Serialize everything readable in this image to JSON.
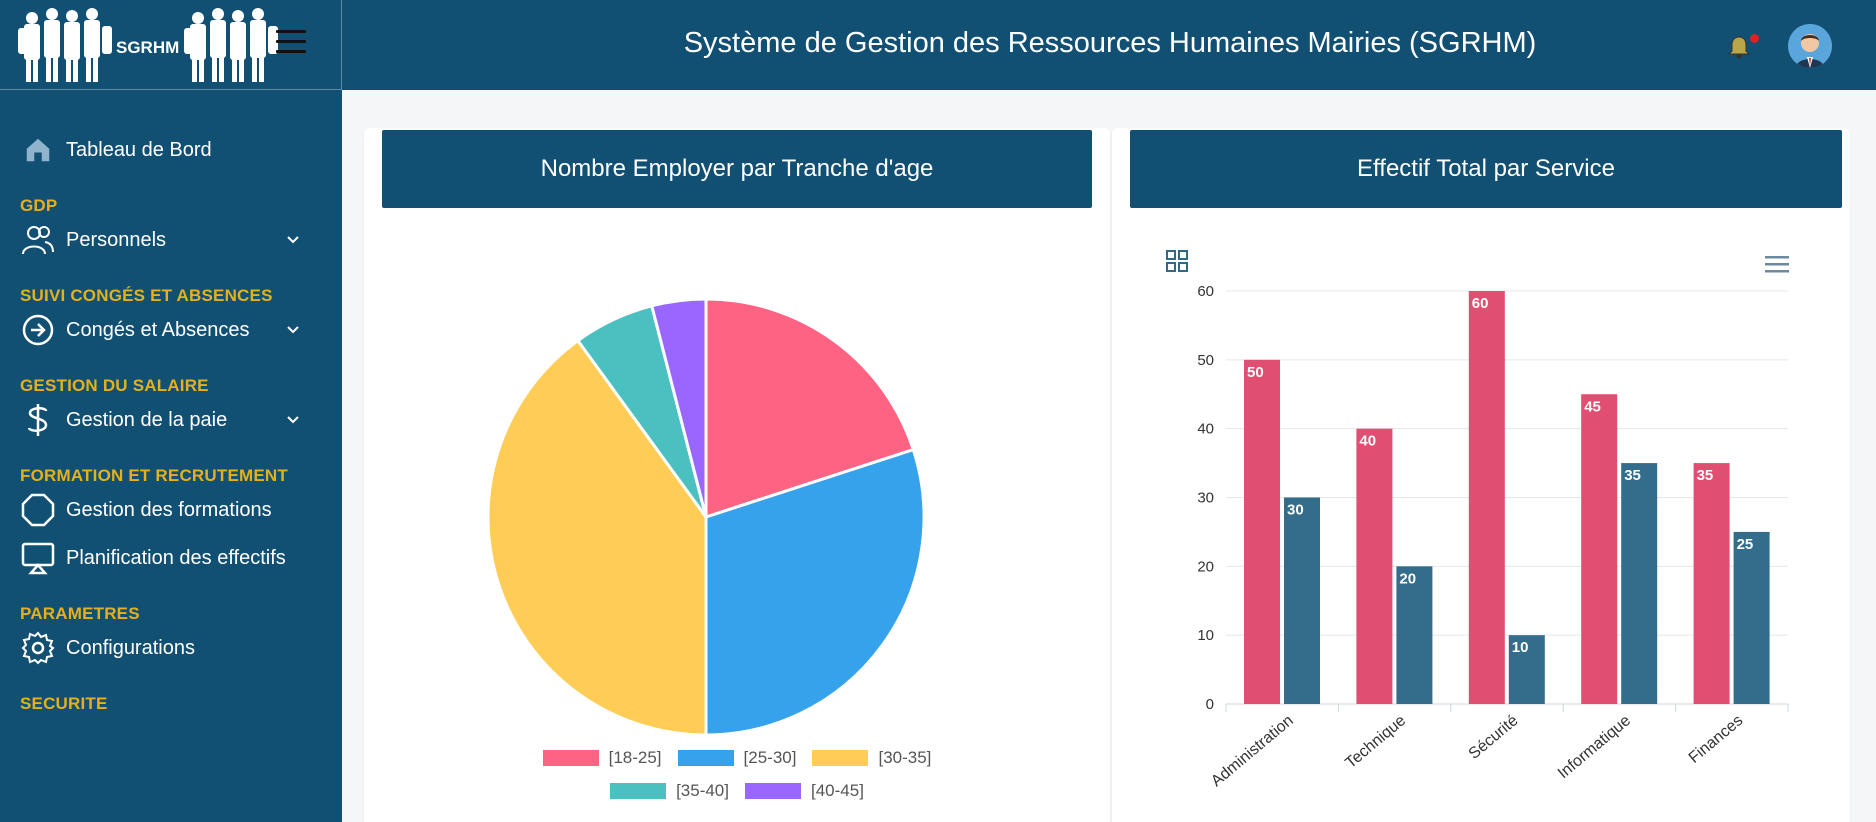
{
  "brand": {
    "name": "SGRHM"
  },
  "header": {
    "title": "Système de Gestion des Ressources Humaines Mairies (SGRHM)"
  },
  "sidebar": {
    "dashboard": {
      "label": "Tableau de Bord",
      "icon": "home-icon"
    },
    "sections": [
      {
        "title": "GDP",
        "items": [
          {
            "label": "Personnels",
            "icon": "users-icon",
            "expandable": true
          }
        ]
      },
      {
        "title": "SUIVI CONGÉS ET ABSENCES",
        "items": [
          {
            "label": "Congés et Absences",
            "icon": "arrow-circle-right-icon",
            "expandable": true
          }
        ]
      },
      {
        "title": "GESTION DU SALAIRE",
        "items": [
          {
            "label": "Gestion de la paie",
            "icon": "dollar-icon",
            "expandable": true
          }
        ]
      },
      {
        "title": "FORMATION ET RECRUTEMENT",
        "items": [
          {
            "label": "Gestion des formations",
            "icon": "octagon-icon",
            "expandable": false
          },
          {
            "label": "Planification des effectifs",
            "icon": "presentation-icon",
            "expandable": false
          }
        ]
      },
      {
        "title": "PARAMETRES",
        "items": [
          {
            "label": "Configurations",
            "icon": "gear-icon",
            "expandable": false
          }
        ]
      },
      {
        "title": "SECURITE",
        "items": []
      }
    ]
  },
  "cards": {
    "left_title": "Nombre Employer par Tranche d'age",
    "right_title": "Effectif Total par Service"
  },
  "chart_data": [
    {
      "type": "pie",
      "categories": [
        "[18-25]",
        "[25-30]",
        "[30-35]",
        "[35-40]",
        "[40-45]"
      ],
      "values": [
        20,
        30,
        40,
        6,
        4
      ],
      "colors": [
        "#ff6384",
        "#36a2eb",
        "#ffcd56",
        "#4bc0c0",
        "#9966ff"
      ],
      "legend": "bottom"
    },
    {
      "type": "bar",
      "categories": [
        "Administration",
        "Technique",
        "Sécurité",
        "Informatique",
        "Finances"
      ],
      "series": [
        {
          "values": [
            50,
            40,
            60,
            45,
            35
          ],
          "color": "#df4a6e"
        },
        {
          "values": [
            30,
            20,
            10,
            35,
            25
          ],
          "color": "#2f6a89"
        }
      ],
      "ylim": [
        0,
        60
      ],
      "yticks": [
        "0",
        "10",
        "20",
        "30",
        "40",
        "50",
        "60"
      ],
      "grid": true,
      "data_labels": true
    }
  ]
}
